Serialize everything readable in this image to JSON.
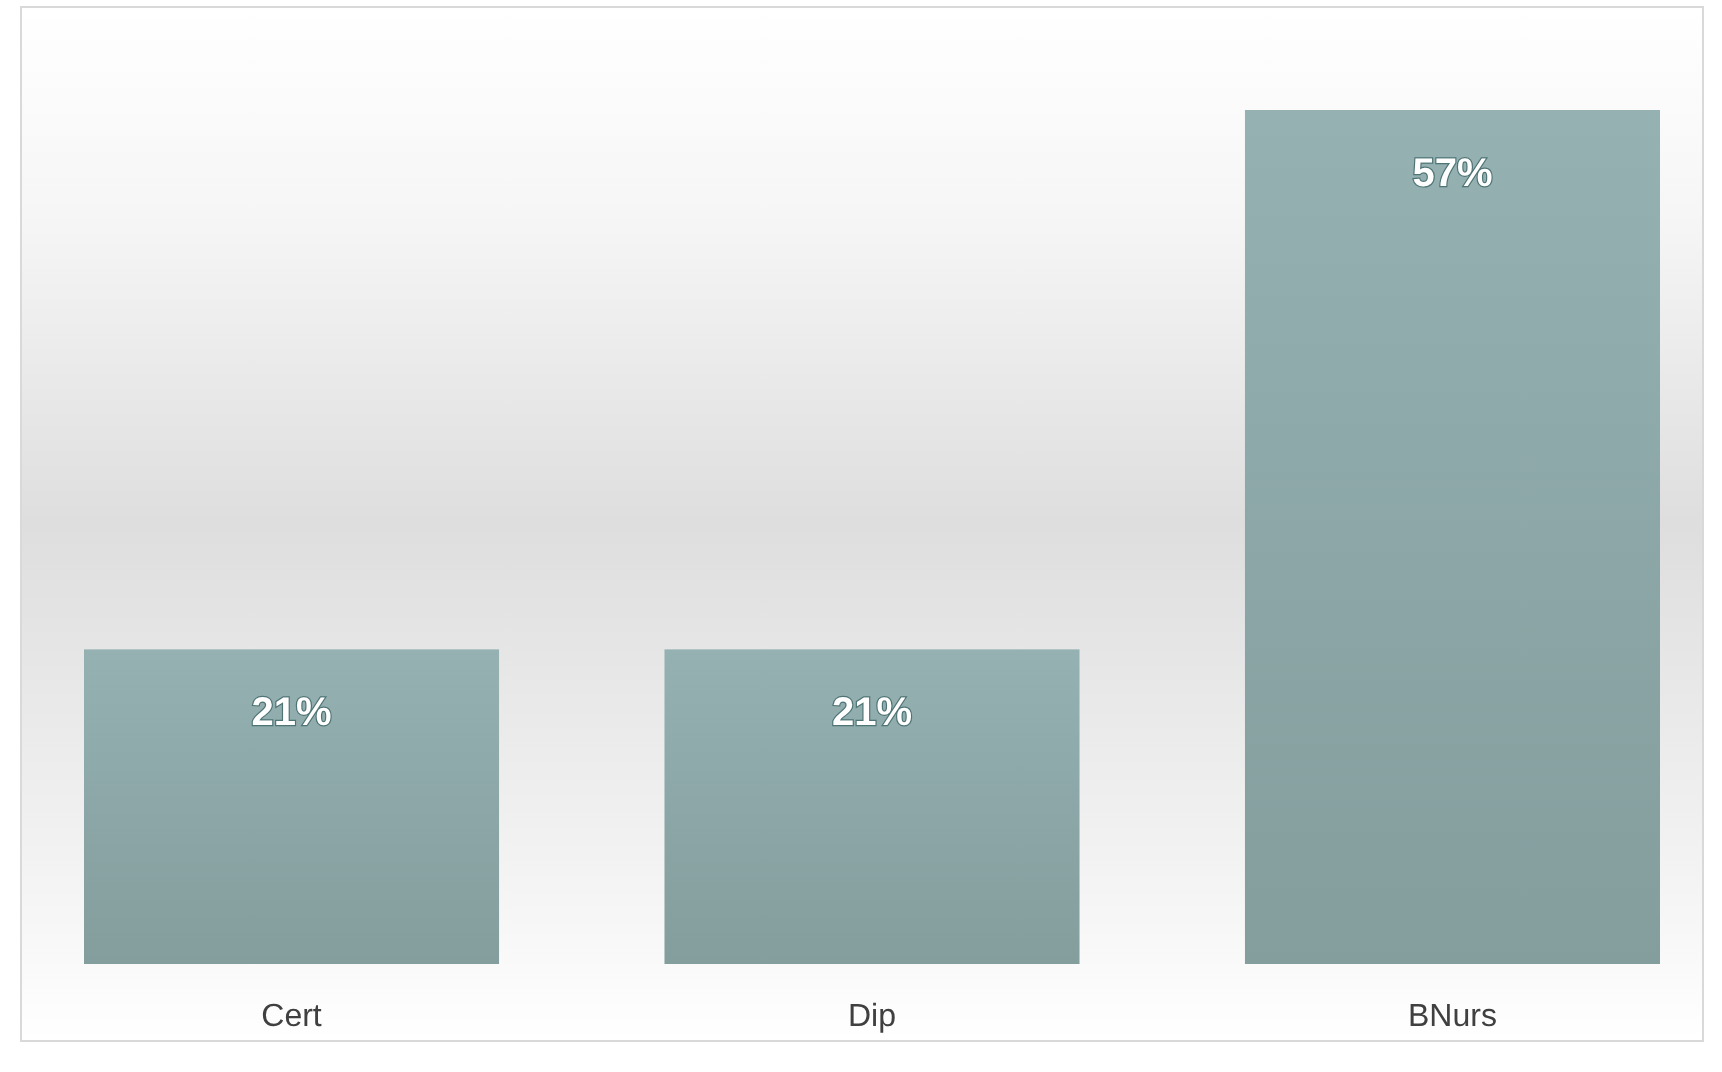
{
  "chart_data": {
    "type": "bar",
    "categories": [
      "Cert",
      "Dip",
      "BNurs"
    ],
    "values": [
      21,
      21,
      57
    ],
    "value_labels": [
      "21%",
      "21%",
      "57%"
    ],
    "color": "#a3c2c3",
    "grid": false
  }
}
